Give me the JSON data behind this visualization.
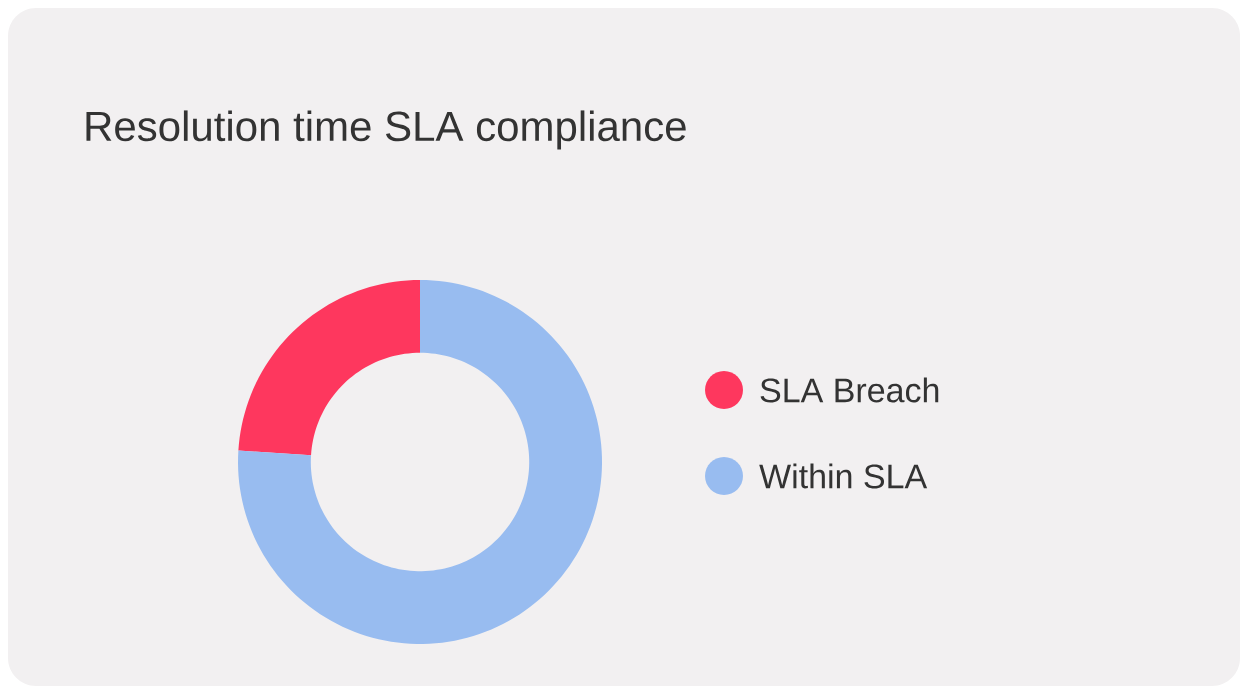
{
  "chart_data": {
    "type": "donut",
    "title": "Resolution time SLA compliance",
    "categories": [
      "SLA Breach",
      "Within SLA"
    ],
    "values": [
      24,
      76
    ],
    "colors": [
      "#fe375e",
      "#98bcf0"
    ],
    "legend": "right"
  }
}
